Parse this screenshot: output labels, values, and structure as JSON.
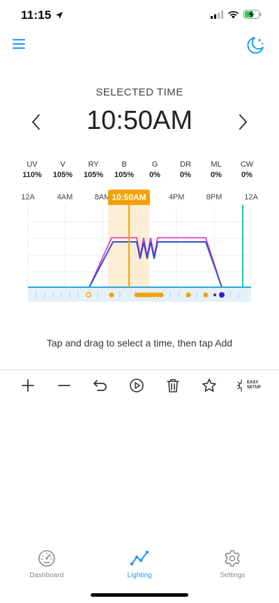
{
  "status_bar": {
    "time": "11:15"
  },
  "header": {
    "selected_label": "SELECTED TIME",
    "selected_time": "10:50AM"
  },
  "channels": [
    {
      "name": "UV",
      "value": "110%"
    },
    {
      "name": "V",
      "value": "105%"
    },
    {
      "name": "RY",
      "value": "105%"
    },
    {
      "name": "B",
      "value": "105%"
    },
    {
      "name": "G",
      "value": "0%"
    },
    {
      "name": "DR",
      "value": "0%"
    },
    {
      "name": "ML",
      "value": "0%"
    },
    {
      "name": "CW",
      "value": "0%"
    }
  ],
  "timeline": {
    "hour_labels": [
      "12A",
      "4AM",
      "8AM",
      "4PM",
      "8PM",
      "12A"
    ],
    "badge": "10:50AM",
    "colors": {
      "accent": "#f5a100",
      "cursor": "#22c4b4",
      "series_blue": "#2f54c8",
      "series_magenta": "#e02ad0",
      "baseline": "#2aa6d8"
    }
  },
  "hint": "Tap and drag to select a time, then tap Add",
  "toolbar": {
    "items": [
      "add-icon",
      "remove-icon",
      "undo-icon",
      "play-icon",
      "trash-icon",
      "star-icon",
      "easy-setup-icon"
    ],
    "easy_line1": "EASY",
    "easy_line2": "SETUP"
  },
  "tabs": [
    {
      "label": "Dashboard",
      "icon": "gauge-icon",
      "active": false
    },
    {
      "label": "Lighting",
      "icon": "chart-line-icon",
      "active": true
    },
    {
      "label": "Settings",
      "icon": "gear-icon",
      "active": false
    }
  ]
}
